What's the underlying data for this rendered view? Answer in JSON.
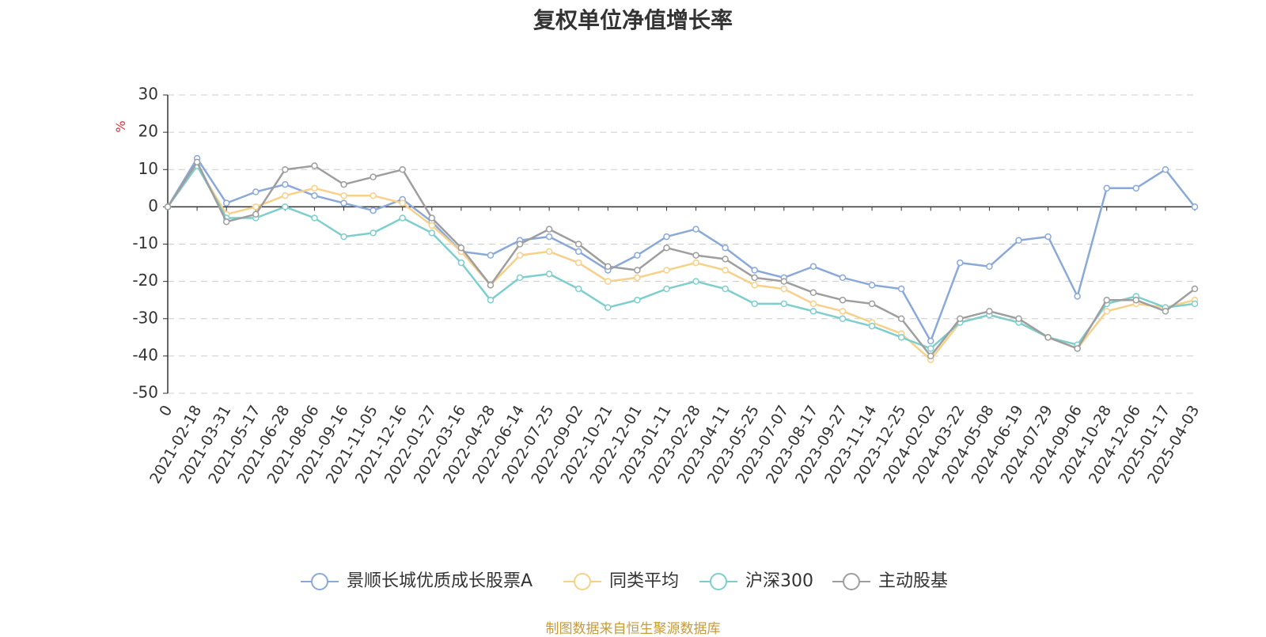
{
  "chart_data": {
    "type": "line",
    "title": "复权单位净值增长率",
    "ylabel": "%",
    "ylim": [
      -50,
      30
    ],
    "yticks": [
      30,
      20,
      10,
      0,
      -10,
      -20,
      -30,
      -40,
      -50
    ],
    "categories": [
      "0",
      "2021-02-18",
      "2021-03-31",
      "2021-05-17",
      "2021-06-28",
      "2021-08-06",
      "2021-09-16",
      "2021-11-05",
      "2021-12-16",
      "2022-01-27",
      "2022-03-16",
      "2022-04-28",
      "2022-06-14",
      "2022-07-25",
      "2022-09-02",
      "2022-10-21",
      "2022-12-01",
      "2023-01-11",
      "2023-02-28",
      "2023-04-11",
      "2023-05-25",
      "2023-07-07",
      "2023-08-17",
      "2023-09-27",
      "2023-11-14",
      "2023-12-25",
      "2024-02-02",
      "2024-03-22",
      "2024-05-08",
      "2024-06-19",
      "2024-07-29",
      "2024-09-06",
      "2024-10-28",
      "2024-12-06",
      "2025-01-17",
      "2025-04-03"
    ],
    "grid": true,
    "legend_position": "bottom",
    "series": [
      {
        "name": "景顺长城优质成长股票A",
        "color": "#8aa9d8",
        "values": [
          0,
          13,
          1,
          4,
          6,
          3,
          1,
          -1,
          2,
          -4,
          -12,
          -13,
          -9,
          -8,
          -12,
          -17,
          -13,
          -8,
          -6,
          -11,
          -17,
          -19,
          -16,
          -19,
          -21,
          -22,
          -36,
          -15,
          -16,
          -9,
          -8,
          -24,
          5,
          5,
          10,
          0
        ]
      },
      {
        "name": "同类平均",
        "color": "#f7d08a",
        "values": [
          0,
          11,
          -2,
          0,
          3,
          5,
          3,
          3,
          1,
          -5,
          -12,
          -21,
          -13,
          -12,
          -15,
          -20,
          -19,
          -17,
          -15,
          -17,
          -21,
          -22,
          -26,
          -28,
          -31,
          -34,
          -41,
          -31,
          -29,
          -31,
          -35,
          -38,
          -28,
          -26,
          -27,
          -25
        ]
      },
      {
        "name": "沪深300",
        "color": "#7ecece",
        "values": [
          0,
          11,
          -3,
          -3,
          0,
          -3,
          -8,
          -7,
          -3,
          -7,
          -15,
          -25,
          -19,
          -18,
          -22,
          -27,
          -25,
          -22,
          -20,
          -22,
          -26,
          -26,
          -28,
          -30,
          -32,
          -35,
          -38,
          -31,
          -29,
          -31,
          -35,
          -37,
          -26,
          -24,
          -27,
          -26
        ]
      },
      {
        "name": "主动股基",
        "color": "#9e9e9e",
        "values": [
          0,
          12,
          -4,
          -2,
          10,
          11,
          6,
          8,
          10,
          -3,
          -11,
          -21,
          -10,
          -6,
          -10,
          -16,
          -17,
          -11,
          -13,
          -14,
          -19,
          -20,
          -23,
          -25,
          -26,
          -30,
          -40,
          -30,
          -28,
          -30,
          -35,
          -38,
          -25,
          -25,
          -28,
          -22
        ]
      }
    ]
  },
  "footer": {
    "source": "制图数据来自恒生聚源数据库"
  }
}
